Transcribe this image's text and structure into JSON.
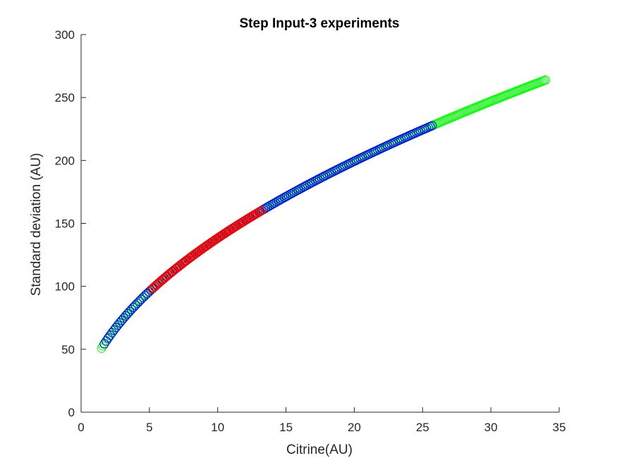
{
  "chart_data": {
    "type": "scatter",
    "title": "Step Input-3 experiments",
    "xlabel": "Citrine(AU)",
    "ylabel": "Standard deviation (AU)",
    "xlim": [
      0,
      35
    ],
    "ylim": [
      0,
      300
    ],
    "xticks": [
      "0",
      "5",
      "10",
      "15",
      "20",
      "25",
      "30",
      "35"
    ],
    "yticks": [
      "0",
      "50",
      "100",
      "150",
      "200",
      "250",
      "300"
    ],
    "grid": false,
    "marker": "open-circle",
    "curve": {
      "form": "y = a * x^b",
      "a": 41.0,
      "b": 0.528
    },
    "series": [
      {
        "color": "#00ff00",
        "x_start": 1.5,
        "x_end": 34.0,
        "count": 300
      },
      {
        "color": "#0000ff",
        "x_start": 1.7,
        "x_end": 25.7,
        "count": 170
      },
      {
        "color": "#ff0000",
        "x_start": 5.2,
        "x_end": 13.2,
        "count": 90
      }
    ]
  }
}
